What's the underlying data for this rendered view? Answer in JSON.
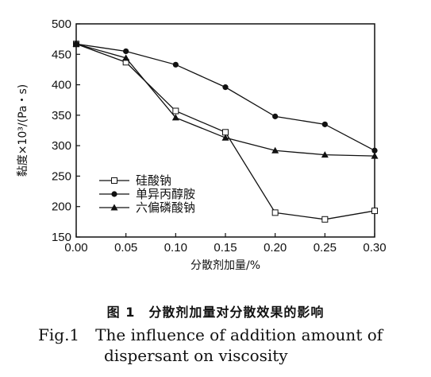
{
  "chart_data": {
    "type": "line",
    "x": [
      0.0,
      0.05,
      0.1,
      0.15,
      0.2,
      0.25,
      0.3
    ],
    "x_ticks": [
      "0.00",
      "0.05",
      "0.10",
      "0.15",
      "0.20",
      "0.25",
      "0.30"
    ],
    "y_ticks": [
      "150",
      "200",
      "250",
      "300",
      "350",
      "400",
      "450",
      "500"
    ],
    "xlim": [
      0.0,
      0.3
    ],
    "ylim": [
      150,
      500
    ],
    "xlabel": "分散剂加量/%",
    "ylabel": "黏度×10³/(Pa・s)",
    "grid": false,
    "legend_position": "lower-left",
    "series": [
      {
        "name": "硅酸钠",
        "marker": "open-square",
        "values": [
          467,
          437,
          357,
          322,
          190,
          179,
          193
        ]
      },
      {
        "name": "单异丙醇胺",
        "marker": "filled-circle",
        "values": [
          467,
          455,
          433,
          396,
          348,
          335,
          292
        ]
      },
      {
        "name": "六偏磷酸钠",
        "marker": "filled-triangle",
        "values": [
          467,
          444,
          346,
          313,
          292,
          285,
          283
        ]
      }
    ]
  },
  "caption": {
    "cn": "图 1　分散剂加量对分散效果的影响",
    "en_line1": "Fig.1　The influence of addition amount of",
    "en_line2": "dispersant on viscosity"
  }
}
